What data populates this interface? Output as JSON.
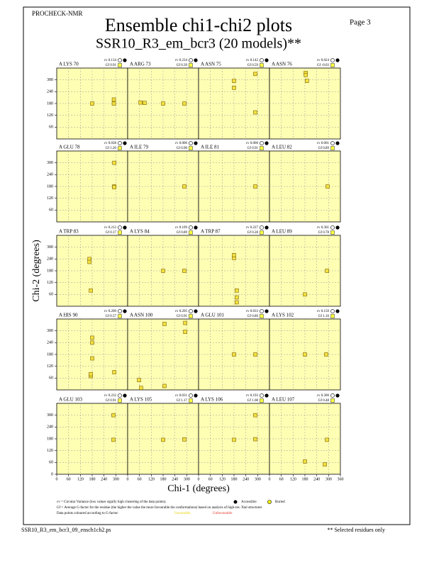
{
  "header": {
    "program": "PROCHECK-NMR",
    "page": "Page  3",
    "title": "Ensemble chi1-chi2 plots",
    "subtitle": "SSR10_R3_em_bcr3 (20 models)**"
  },
  "axes": {
    "xlabel": "Chi-1 (degrees)",
    "ylabel": "Chi-2 (degrees)",
    "xlim": [
      0,
      360
    ],
    "ylim": [
      0,
      360
    ],
    "xticks": [
      0,
      60,
      120,
      180,
      240,
      300,
      360
    ],
    "yticks": [
      0,
      60,
      120,
      180,
      240,
      300
    ],
    "cv_label": "cv",
    "gf_label": "Gf"
  },
  "panels": [
    {
      "label": "A LYS 70",
      "cv": "0.134",
      "gf": "0.91",
      "points": [
        [
          180,
          180
        ],
        [
          290,
          180
        ],
        [
          290,
          200
        ]
      ]
    },
    {
      "label": "A ARG 73",
      "cv": "0.234",
      "gf": "0.39",
      "points": [
        [
          65,
          185
        ],
        [
          86,
          183
        ],
        [
          180,
          180
        ],
        [
          288,
          180
        ]
      ]
    },
    {
      "label": "A ASN 75",
      "cv": "0.142",
      "gf": "0.59",
      "points": [
        [
          180,
          295
        ],
        [
          180,
          260
        ],
        [
          288,
          330
        ],
        [
          288,
          135
        ]
      ]
    },
    {
      "label": "A ASN 76",
      "cv": "0.024",
      "gf": "-0.03",
      "points": [
        [
          184,
          335
        ],
        [
          184,
          325
        ],
        [
          190,
          295
        ]
      ]
    },
    {
      "label": "A GLU 78",
      "cv": "0.038",
      "gf": "1.20",
      "points": [
        [
          292,
          300
        ],
        [
          292,
          180
        ],
        [
          292,
          176
        ]
      ]
    },
    {
      "label": "A ILE 79",
      "cv": "0.000",
      "gf": "0.90",
      "points": [
        [
          288,
          180
        ]
      ]
    },
    {
      "label": "A ILE 81",
      "cv": "0.000",
      "gf": "0.91",
      "points": [
        [
          288,
          180
        ]
      ]
    },
    {
      "label": "A LEU 82",
      "cv": "0.001",
      "gf": "0.89",
      "points": [
        [
          295,
          180
        ]
      ]
    },
    {
      "label": "A TRP 83",
      "cv": "0.212",
      "gf": "0.17",
      "points": [
        [
          166,
          240
        ],
        [
          166,
          225
        ],
        [
          173,
          80
        ]
      ]
    },
    {
      "label": "A LYS 84",
      "cv": "0.109",
      "gf": "0.89",
      "points": [
        [
          180,
          180
        ],
        [
          288,
          180
        ]
      ]
    },
    {
      "label": "A TRP 87",
      "cv": "0.227",
      "gf": "0.28",
      "points": [
        [
          180,
          245
        ],
        [
          180,
          260
        ],
        [
          194,
          80
        ],
        [
          194,
          45
        ],
        [
          194,
          20
        ]
      ]
    },
    {
      "label": "A LEU 89",
      "cv": "0.361",
      "gf": "0.78",
      "points": [
        [
          180,
          60
        ],
        [
          292,
          180
        ]
      ]
    },
    {
      "label": "A HIS 90",
      "cv": "0.200",
      "gf": "0.57",
      "points": [
        [
          180,
          265
        ],
        [
          180,
          240
        ],
        [
          180,
          160
        ],
        [
          173,
          70
        ],
        [
          173,
          80
        ],
        [
          292,
          90
        ]
      ]
    },
    {
      "label": "A ASN 100",
      "cv": "0.205",
      "gf": "0.91",
      "points": [
        [
          58,
          50
        ],
        [
          68,
          10
        ],
        [
          187,
          20
        ],
        [
          187,
          335
        ],
        [
          292,
          340
        ],
        [
          292,
          295
        ]
      ]
    },
    {
      "label": "A GLU 101",
      "cv": "0.033",
      "gf": "0.80",
      "points": [
        [
          180,
          180
        ],
        [
          288,
          180
        ]
      ]
    },
    {
      "label": "A LYS 102",
      "cv": "0.150",
      "gf": "1.16",
      "points": [
        [
          180,
          180
        ],
        [
          288,
          180
        ]
      ]
    },
    {
      "label": "A GLU 103",
      "cv": "0.232",
      "gf": "0.91",
      "points": [
        [
          288,
          300
        ],
        [
          288,
          175
        ]
      ]
    },
    {
      "label": "A LYS 105",
      "cv": "0.031",
      "gf": "1.17",
      "points": [
        [
          180,
          175
        ],
        [
          288,
          177
        ]
      ]
    },
    {
      "label": "A LYS 106",
      "cv": "0.193",
      "gf": "1.08",
      "points": [
        [
          180,
          175
        ],
        [
          288,
          300
        ],
        [
          288,
          178
        ]
      ]
    },
    {
      "label": "A LEU 107",
      "cv": "0.300",
      "gf": "0.48",
      "points": [
        [
          180,
          65
        ],
        [
          281,
          50
        ],
        [
          292,
          175
        ]
      ]
    }
  ],
  "legend": {
    "cv_note": "cv = Circular Variance (low values signify high clustering of the data points).",
    "accessible": "Accessible",
    "buried": "Buried",
    "gf_note": "Gf = Average G-factor for the residue (the higher the value the more favourable the conformations) based on analysis of high-res. Xtal structures",
    "colour_note": "Data points coloured according to G-factor:",
    "favourable": "Favourable",
    "unfavourable": "Unfavourable"
  },
  "footer": {
    "file": "SSR10_R3_em_bcr3_09_ensch1ch2.ps",
    "note": "** Selected residues only"
  }
}
